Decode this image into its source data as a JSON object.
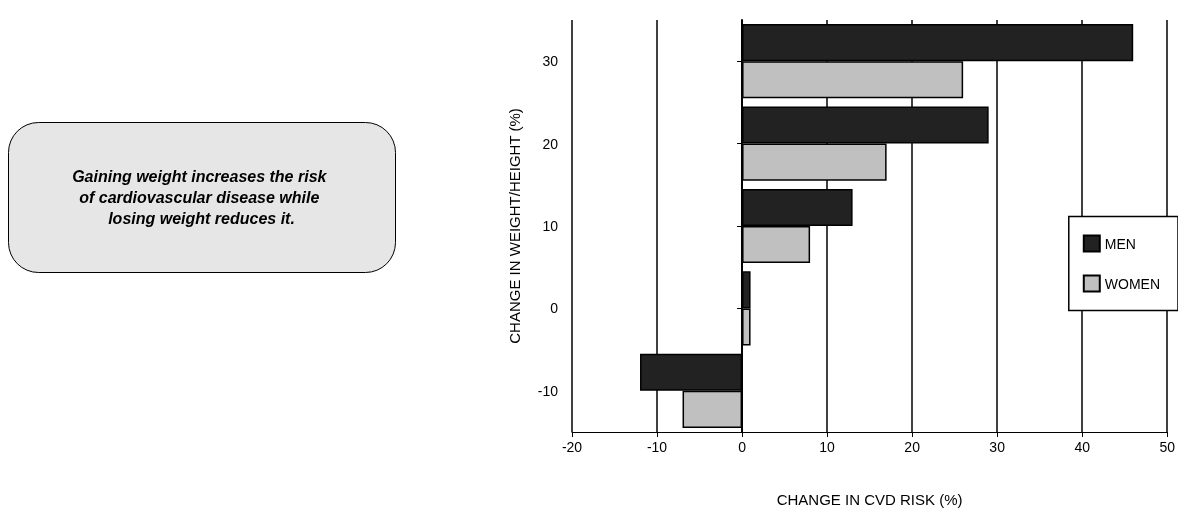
{
  "chart_data": {
    "type": "bar",
    "orientation": "horizontal",
    "xlabel": "CHANGE IN CVD RISK (%)",
    "ylabel": "CHANGE IN WEIGHT/HEIGHT (%)",
    "categories": [
      "30",
      "20",
      "10",
      "0",
      "-10"
    ],
    "series": [
      {
        "name": "MEN",
        "color": "#222222",
        "values": [
          46,
          29,
          13,
          1,
          -12
        ]
      },
      {
        "name": "WOMEN",
        "color": "#c0c0c0",
        "values": [
          26,
          17,
          8,
          1,
          -7
        ]
      }
    ],
    "xlim": [
      -20,
      50
    ],
    "xticks": [
      -20,
      -10,
      0,
      10,
      20,
      30,
      40,
      50
    ],
    "grid": "x",
    "legend": "right",
    "annotations": [
      "Gaining weight increases the risk of cardiovascular disease while losing weight reduces it."
    ]
  }
}
